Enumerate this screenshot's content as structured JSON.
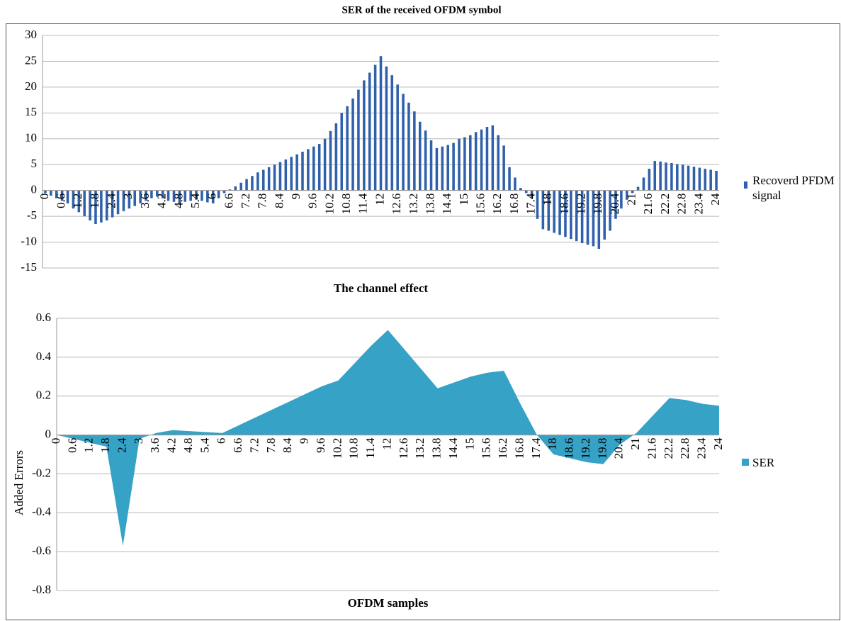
{
  "title": "SER of the received OFDM symbol",
  "chart_data": [
    {
      "type": "bar",
      "xlabel": "The channel effect",
      "categories": [
        0,
        null,
        null,
        0.6,
        null,
        null,
        1.2,
        null,
        null,
        1.8,
        null,
        null,
        2.4,
        null,
        null,
        3,
        null,
        null,
        3.6,
        null,
        null,
        4.2,
        null,
        null,
        4.8,
        null,
        null,
        5.4,
        null,
        null,
        6,
        null,
        null,
        6.6,
        null,
        null,
        7.2,
        null,
        null,
        7.8,
        null,
        null,
        8.4,
        null,
        null,
        9,
        null,
        null,
        9.6,
        null,
        null,
        10.2,
        null,
        null,
        10.8,
        null,
        null,
        11.4,
        null,
        null,
        12,
        null,
        null,
        12.6,
        null,
        null,
        13.2,
        null,
        null,
        13.8,
        null,
        null,
        14.4,
        null,
        null,
        15,
        null,
        null,
        15.6,
        null,
        null,
        16.2,
        null,
        null,
        16.8,
        null,
        null,
        17.4,
        null,
        null,
        18,
        null,
        null,
        18.6,
        null,
        null,
        19.2,
        null,
        null,
        19.8,
        null,
        null,
        20.4,
        null,
        null,
        21,
        null,
        null,
        21.6,
        null,
        null,
        22.2,
        null,
        null,
        22.8,
        null,
        null,
        23.4,
        null,
        null,
        24
      ],
      "series": [
        {
          "name": "Recoverd PFDM signal",
          "color": "#2f60ab",
          "values": [
            -0.5,
            -1,
            -1.5,
            -2,
            -2.5,
            -3.5,
            -4.2,
            -5,
            -5.8,
            -6.5,
            -6.2,
            -5.8,
            -5.2,
            -4.6,
            -4,
            -3.5,
            -3,
            -2.5,
            -2,
            -1.5,
            -1.2,
            -1.5,
            -2,
            -2.2,
            -2.5,
            -2.2,
            -2,
            -1.8,
            -2,
            -2.3,
            -2.5,
            -1.5,
            -0.5,
            0.2,
            0.8,
            1.5,
            2.2,
            2.8,
            3.5,
            4,
            4.5,
            5,
            5.5,
            6,
            6.5,
            7,
            7.5,
            8,
            8.5,
            9,
            10,
            11.5,
            13,
            15,
            16.3,
            17.8,
            19.5,
            21.3,
            22.8,
            24.3,
            26,
            24,
            22.3,
            20.5,
            18.7,
            17,
            15.3,
            13.3,
            11.6,
            9.7,
            8.2,
            8.5,
            8.8,
            9.2,
            10,
            10.3,
            10.7,
            11.3,
            11.8,
            12.3,
            12.6,
            10.7,
            8.7,
            4.5,
            2.5,
            0.5,
            -0.5,
            -1.5,
            -5.5,
            -7.5,
            -7.8,
            -8.2,
            -8.6,
            -9,
            -9.4,
            -9.8,
            -10.2,
            -10.5,
            -10.8,
            -11.3,
            -9.5,
            -7.8,
            -5.5,
            -3.5,
            -1.8,
            -0.5,
            0.7,
            2.5,
            4.2,
            5.7,
            5.6,
            5.4,
            5.3,
            5.1,
            5,
            4.8,
            4.6,
            4.4,
            4.2,
            4,
            3.8
          ]
        }
      ],
      "ylim": [
        -15,
        30
      ],
      "yticks": [
        -15,
        -10,
        -5,
        0,
        5,
        10,
        15,
        20,
        25,
        30
      ],
      "grid": true,
      "legend": "right"
    },
    {
      "type": "area",
      "xlabel": "OFDM samples",
      "ylabel": "Added Errors",
      "categories": [
        0,
        0.6,
        1.2,
        1.8,
        2.4,
        3,
        3.6,
        4.2,
        4.8,
        5.4,
        6,
        6.6,
        7.2,
        7.8,
        8.4,
        9,
        9.6,
        10.2,
        10.8,
        11.4,
        12,
        12.6,
        13.2,
        13.8,
        14.4,
        15,
        15.6,
        16.2,
        16.8,
        17.4,
        18,
        18.6,
        19.2,
        19.8,
        20.4,
        21,
        21.6,
        22.2,
        22.8,
        23.4,
        24
      ],
      "series": [
        {
          "name": "SER",
          "color": "#36a2c6",
          "values": [
            0,
            -0.02,
            -0.04,
            -0.06,
            -0.57,
            -0.02,
            0.01,
            0.025,
            0.02,
            0.015,
            0.01,
            0.05,
            0.09,
            0.13,
            0.17,
            0.21,
            0.25,
            0.28,
            0.37,
            0.46,
            0.54,
            0.44,
            0.34,
            0.24,
            0.27,
            0.3,
            0.32,
            0.33,
            0.16,
            0,
            -0.1,
            -0.12,
            -0.14,
            -0.15,
            -0.05,
            0.01,
            0.1,
            0.19,
            0.18,
            0.16,
            0.15
          ]
        }
      ],
      "ylim": [
        -0.8,
        0.6
      ],
      "yticks": [
        -0.8,
        -0.6,
        -0.4,
        -0.2,
        0,
        0.2,
        0.4,
        0.6
      ],
      "grid": true,
      "legend": "right"
    }
  ]
}
